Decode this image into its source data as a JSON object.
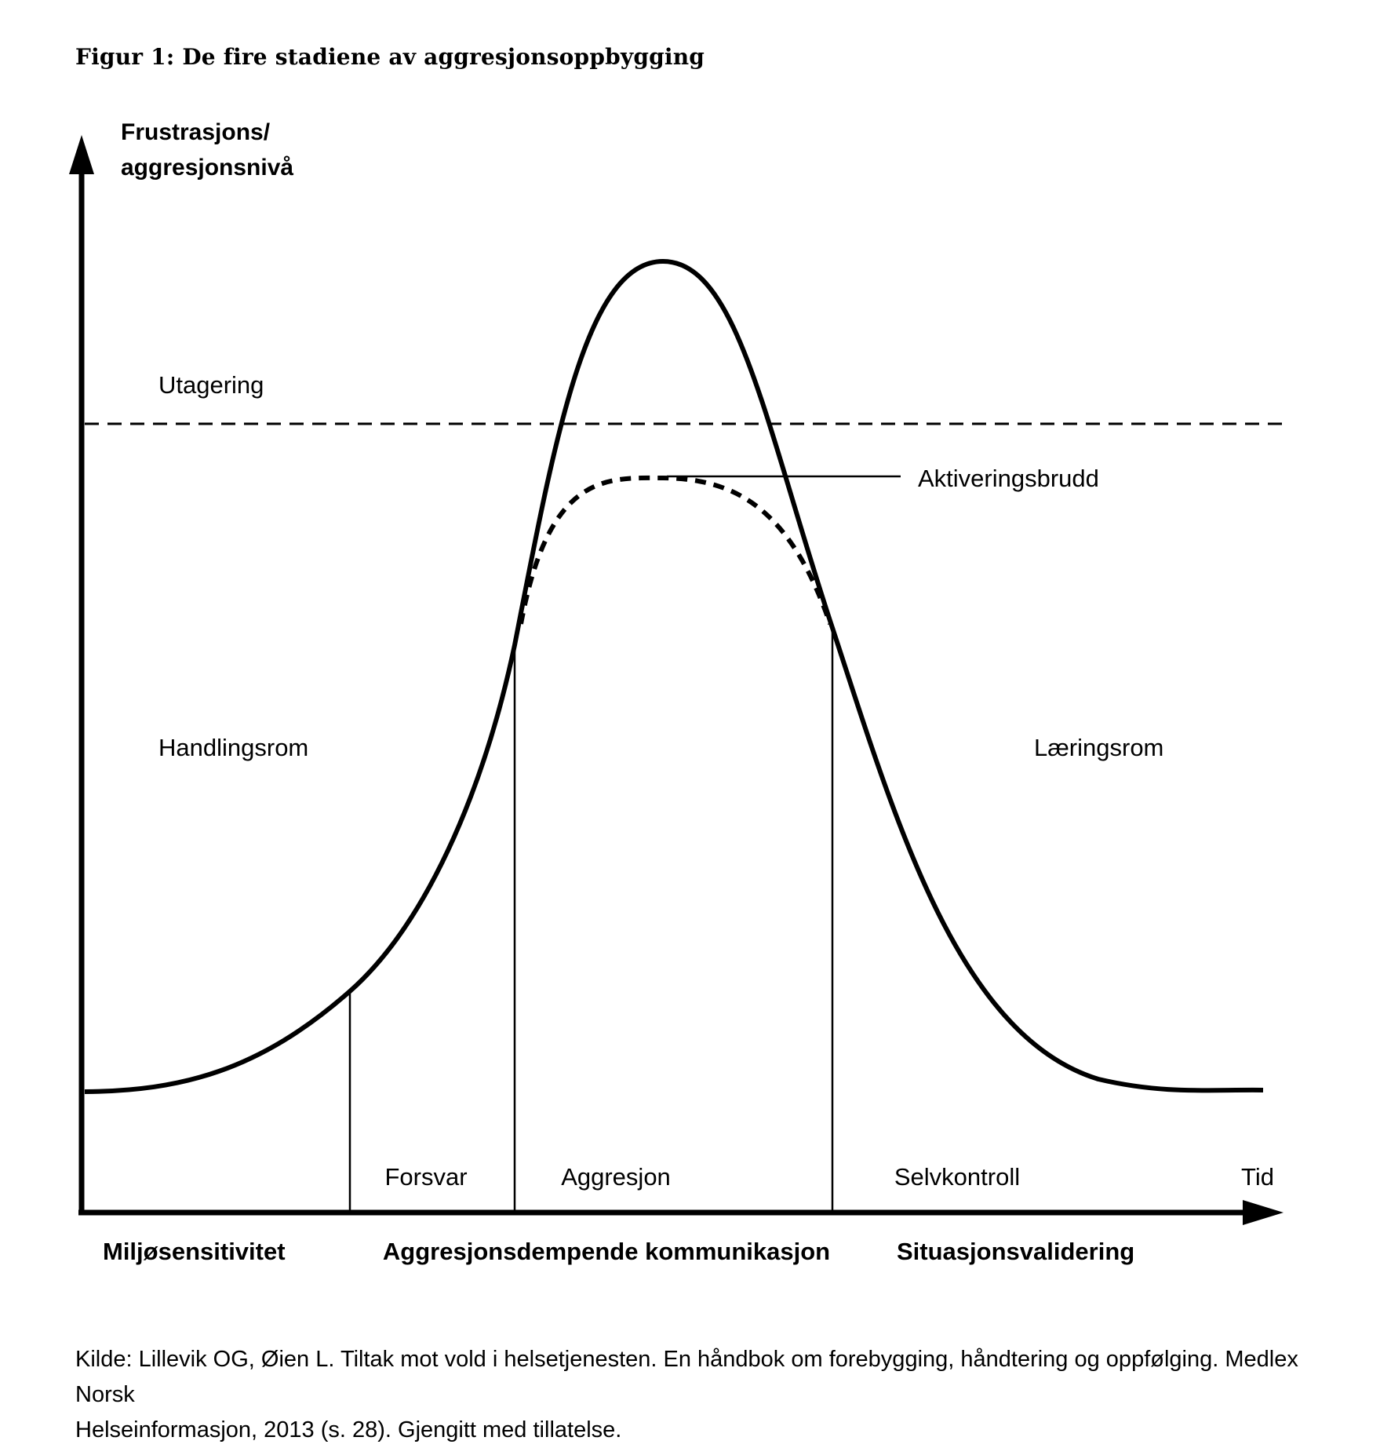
{
  "figure": {
    "title": "Figur 1: De fire stadiene av aggresjonsoppbygging",
    "y_axis_label_line1": "Frustrasjons/",
    "y_axis_label_line2": "aggresjonsnivå",
    "x_axis_label": "Tid",
    "threshold_label": "Utagering",
    "annotation": "Aktiveringsbrudd",
    "zones": {
      "left": "Handlingsrom",
      "right": "Læringsrom"
    },
    "stages": [
      "Forsvar",
      "Aggresjon",
      "Selvkontroll"
    ],
    "strategies": [
      "Miljøsensitivitet",
      "Aggresjonsdempende kommunikasjon",
      "Situasjonsvalidering"
    ]
  },
  "source": {
    "line1": "Kilde: Lillevik OG, Øien L. Tiltak mot vold i helsetjenesten. En håndbok om forebygging, håndtering og oppfølging. Medlex Norsk",
    "line2": "Helseinformasjon, 2013 (s. 28). Gjengitt med tillatelse."
  },
  "colors": {
    "ink": "#000000",
    "background": "#ffffff"
  }
}
